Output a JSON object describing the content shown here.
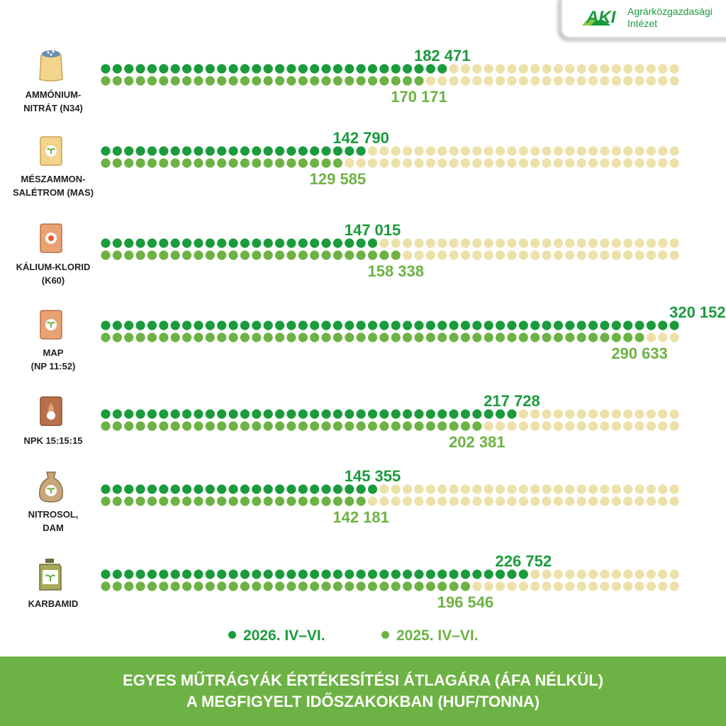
{
  "logo": {
    "mark": "AKI",
    "line1": "Agrárközgazdasági",
    "line2": "Intézet"
  },
  "colors": {
    "dark_green": "#1a9b3c",
    "light_green": "#6db244",
    "empty_dot": "#ede0a8",
    "footer_bg": "#6db244"
  },
  "legend": [
    {
      "label": "2026. IV–VI.",
      "color": "#1a9b3c"
    },
    {
      "label": "2025. IV–VI.",
      "color": "#6db244"
    }
  ],
  "title": {
    "line1": "EGYES MŰTRÁGYÁK ÉRTÉKESÍTÉSI ÁTLAGÁRA (ÁFA NÉLKÜL)",
    "line2": "A MEGFIGYELT IDŐSZAKOKBAN (HUF/TONNA)"
  },
  "products": [
    {
      "label": "AMMÓNIUM-\nNITRÁT (N34)",
      "icon": "fertilizer-sack-icon"
    },
    {
      "label": "MÉSZAMMON-\nSALÉTROM (MAS)",
      "icon": "fertilizer-bag-icon"
    },
    {
      "label": "KÁLIUM-KLORID\n(K60)",
      "icon": "fertilizer-bag-icon"
    },
    {
      "label": "MAP\n(NP 11:52)",
      "icon": "fertilizer-bag-icon"
    },
    {
      "label": "NPK 15:15:15",
      "icon": "fertilizer-bag-icon"
    },
    {
      "label": "NITROSOL,\nDAM",
      "icon": "fertilizer-pouch-icon"
    },
    {
      "label": "KARBAMID",
      "icon": "fertilizer-canister-icon"
    }
  ],
  "chart_data": {
    "type": "bar",
    "title": "EGYES MŰTRÁGYÁK ÉRTÉKESÍTÉSI ÁTLAGÁRA (ÁFA NÉLKÜL) A MEGFIGYELT IDŐSZAKOKBAN (HUF/TONNA)",
    "categories": [
      "AMMÓNIUM-NITRÁT (N34)",
      "MÉSZAMMON-SALÉTROM (MAS)",
      "KÁLIUM-KLORID (K60)",
      "MAP (NP 11:52)",
      "NPK 15:15:15",
      "NITROSOL, DAM",
      "KARBAMID"
    ],
    "series": [
      {
        "name": "2026. IV–VI.",
        "values": [
          182471,
          142790,
          147015,
          320152,
          217728,
          145355,
          226752
        ],
        "labels": [
          "182 471",
          "142 790",
          "147 015",
          "320 152",
          "217 728",
          "145 355",
          "226 752"
        ]
      },
      {
        "name": "2025. IV–VI.",
        "values": [
          170171,
          129585,
          158338,
          290633,
          202381,
          142181,
          196546
        ],
        "labels": [
          "170 171",
          "129 585",
          "158 338",
          "290 633",
          "202 381",
          "142 181",
          "196 546"
        ]
      }
    ],
    "orientation": "horizontal",
    "style": "dot-matrix",
    "grid": false,
    "legend_position": "bottom"
  }
}
